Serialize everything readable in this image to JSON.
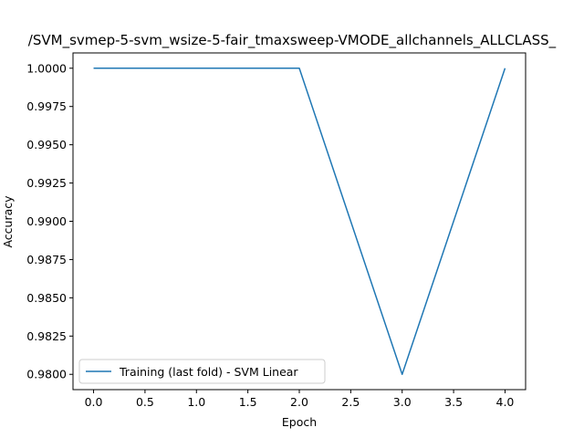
{
  "chart_data": {
    "type": "line",
    "title": "/SVM_svmep-5-svm_wsize-5-fair_tmaxsweep-VMODE_allchannels_ALLCLASS_",
    "xlabel": "Epoch",
    "ylabel": "Accuracy",
    "x": [
      0,
      1,
      2,
      3,
      4
    ],
    "series": [
      {
        "name": "Training (last fold) - SVM Linear",
        "values": [
          1.0,
          1.0,
          1.0,
          0.98,
          1.0
        ],
        "color": "#1f77b4"
      }
    ],
    "xlim": [
      -0.2,
      4.2
    ],
    "ylim": [
      0.979,
      1.001
    ],
    "xticks": [
      "0.0",
      "0.5",
      "1.0",
      "1.5",
      "2.0",
      "2.5",
      "3.0",
      "3.5",
      "4.0"
    ],
    "yticks": [
      "0.9800",
      "0.9825",
      "0.9850",
      "0.9875",
      "0.9900",
      "0.9925",
      "0.9950",
      "0.9975",
      "1.0000"
    ],
    "grid": false,
    "legend_position": "lower-left"
  }
}
